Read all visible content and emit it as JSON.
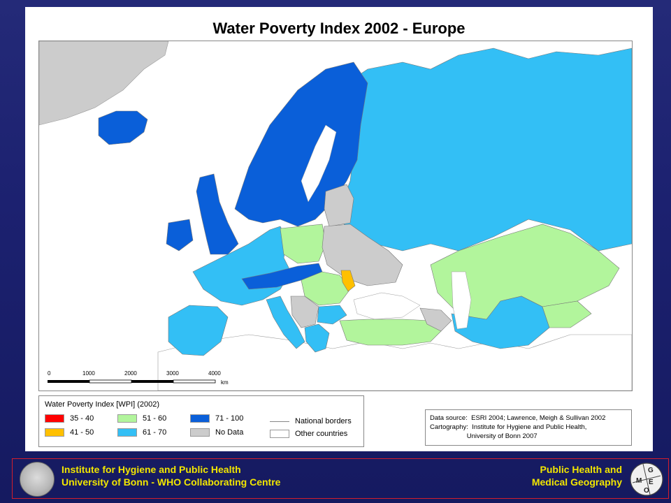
{
  "title": "Water Poverty Index 2002 - Europe",
  "colors": {
    "c35_40": "#ff0000",
    "c41_50": "#ffc000",
    "c51_60": "#b2f59c",
    "c61_70": "#33bff5",
    "c71_100": "#0a5fd9",
    "no_data": "#cccccc",
    "other": "#ffffff",
    "footer_text": "#f2e600",
    "footer_border": "#d21e2c"
  },
  "scale_bar": {
    "ticks": [
      "0",
      "1000",
      "2000",
      "3000",
      "4000"
    ],
    "unit": "km"
  },
  "legend": {
    "title": "Water Poverty Index [WPI] (2002)",
    "items": [
      {
        "label": "35 - 40",
        "color": "#ff0000"
      },
      {
        "label": "41 - 50",
        "color": "#ffc000"
      },
      {
        "label": "51 - 60",
        "color": "#b2f59c"
      },
      {
        "label": "61 - 70",
        "color": "#33bff5"
      },
      {
        "label": "71 - 100",
        "color": "#0a5fd9"
      },
      {
        "label": "No Data",
        "color": "#cccccc"
      }
    ],
    "national_borders": "National borders",
    "other_countries": "Other countries"
  },
  "source": {
    "line1": "Data source:  ESRI 2004; Lawrence, Meigh & Sullivan 2002",
    "line2": "Cartography:  Institute for Hygiene and Public Health,",
    "line3": "                    University of Bonn 2007"
  },
  "footer": {
    "left_line1": "Institute for Hygiene and Public Health",
    "left_line2": "University of Bonn   -   WHO Collaborating Centre",
    "right_line1": "Public Health and",
    "right_line2": "Medical Geography"
  }
}
